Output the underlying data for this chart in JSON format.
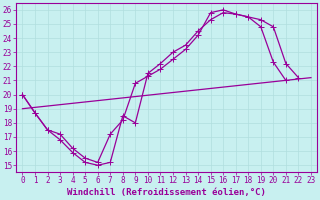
{
  "xlabel": "Windchill (Refroidissement éolien,°C)",
  "xlim": [
    -0.5,
    23.5
  ],
  "ylim": [
    14.5,
    26.5
  ],
  "xticks": [
    0,
    1,
    2,
    3,
    4,
    5,
    6,
    7,
    8,
    9,
    10,
    11,
    12,
    13,
    14,
    15,
    16,
    17,
    18,
    19,
    20,
    21,
    22,
    23
  ],
  "yticks": [
    15,
    16,
    17,
    18,
    19,
    20,
    21,
    22,
    23,
    24,
    25,
    26
  ],
  "bg_color": "#c8f0f0",
  "line_color": "#990099",
  "grid_color": "#b0dede",
  "line1_x": [
    0,
    1,
    2,
    3,
    4,
    5,
    6,
    7,
    8,
    9,
    10,
    11,
    12,
    13,
    14,
    15,
    16,
    17,
    18,
    19,
    20,
    21
  ],
  "line1_y": [
    20.0,
    18.7,
    17.5,
    16.8,
    15.9,
    15.2,
    15.0,
    15.2,
    18.5,
    18.0,
    21.5,
    22.2,
    23.0,
    23.5,
    24.5,
    25.3,
    25.8,
    25.7,
    25.5,
    24.8,
    22.3,
    21.0
  ],
  "line2_x": [
    0,
    1,
    2,
    3,
    4,
    5,
    6,
    7,
    8,
    9,
    10,
    11,
    12,
    13,
    14,
    15,
    16,
    17,
    18,
    19,
    20,
    21,
    22
  ],
  "line2_y": [
    20.0,
    18.7,
    17.5,
    17.2,
    16.2,
    15.5,
    15.2,
    17.2,
    18.2,
    20.8,
    21.3,
    21.8,
    22.5,
    23.2,
    24.2,
    25.8,
    26.0,
    25.7,
    25.5,
    25.3,
    24.8,
    22.2,
    21.2
  ],
  "line3_x": [
    0,
    23
  ],
  "line3_y": [
    19.0,
    21.2
  ],
  "marker_size": 3,
  "linewidth": 0.9,
  "font_size": 6.5,
  "tick_font_size": 5.5
}
